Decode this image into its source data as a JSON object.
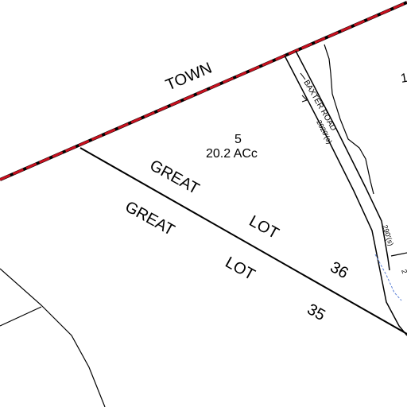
{
  "map": {
    "colors": {
      "background": "#ffffff",
      "linework": "#000000",
      "town_line_dash": "#c8101e",
      "water": "#5a7fd6"
    },
    "labels": {
      "town": "TOWN",
      "lot_number": "5",
      "lot_area": "20.2 ACc",
      "great_lot_36_great": "GREAT",
      "great_lot_36_lot": "LOT",
      "great_lot_36_number": "36",
      "great_lot_35_great": "GREAT",
      "great_lot_35_lot": "LOT",
      "great_lot_35_number": "35",
      "road_name": "BAXTER ROAD",
      "road_width_1": "2020'(s)",
      "road_width_2": "290'(s)",
      "edge_fragment_1": "1",
      "edge_fragment_2": "2"
    }
  }
}
